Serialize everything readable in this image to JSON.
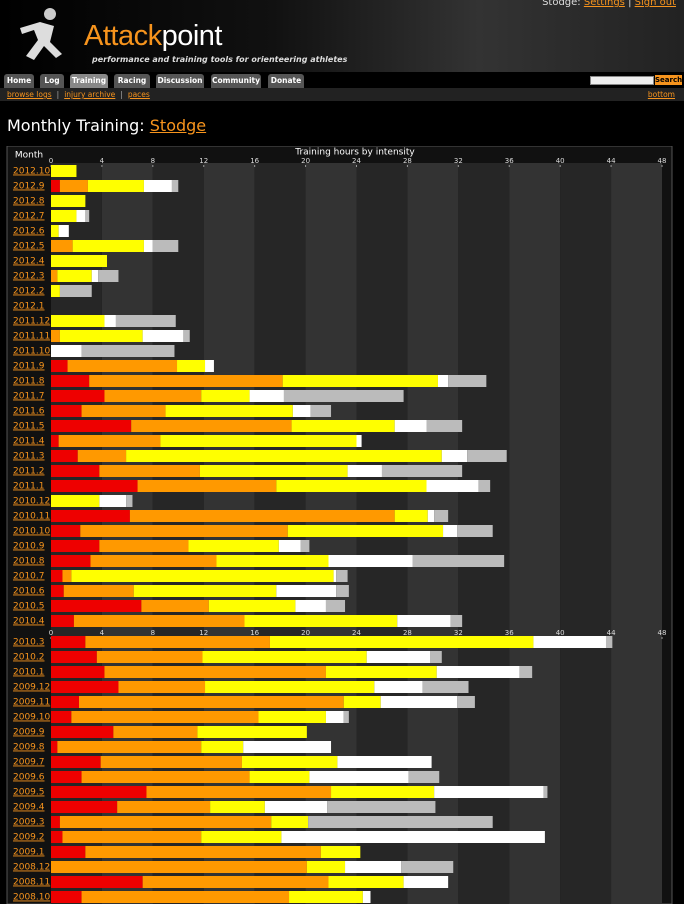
{
  "header": {
    "logo_part1": "Attack",
    "logo_part2": "point",
    "tagline": "performance and training tools for orienteering athletes",
    "user": "Stodge:",
    "settings": "Settings",
    "separator": "|",
    "sign_out": "Sign out",
    "search": "Search"
  },
  "nav": [
    "Home",
    "Log",
    "Training",
    "Racing",
    "Discussion",
    "Community",
    "Donate"
  ],
  "subnav": [
    "browse logs",
    "injury archive",
    "paces"
  ],
  "subnav_right": "bottom",
  "page": {
    "title": "Monthly Training:",
    "user": "Stodge"
  },
  "chart_data": {
    "type": "bar",
    "orientation": "horizontal",
    "stacked": true,
    "title": "Training hours by intensity",
    "category_label": "Month",
    "categories": [
      "2012.10",
      "2012.9",
      "2012.8",
      "2012.7",
      "2012.6",
      "2012.5",
      "2012.4",
      "2012.3",
      "2012.2",
      "2012.1",
      "2011.12",
      "2011.11",
      "2011.10",
      "2011.9",
      "2011.8",
      "2011.7",
      "2011.6",
      "2011.5",
      "2011.4",
      "2011.3",
      "2011.2",
      "2011.1",
      "2010.12",
      "2010.11",
      "2010.10",
      "2010.9",
      "2010.8",
      "2010.7",
      "2010.6",
      "2010.5",
      "2010.4",
      "2010.3",
      "2010.2",
      "2010.1",
      "2009.12",
      "2009.11",
      "2009.10",
      "2009.9",
      "2009.8",
      "2009.7",
      "2009.6",
      "2009.5",
      "2009.4",
      "2009.3",
      "2009.2",
      "2009.1",
      "2008.12",
      "2008.11",
      "2008.10"
    ],
    "series": [
      {
        "color": "#ee0000",
        "values": [
          0,
          0.7,
          0,
          0,
          0,
          0,
          0,
          0,
          0,
          0,
          0,
          0,
          0,
          1.3,
          3.0,
          4.2,
          2.4,
          6.3,
          0.6,
          2.1,
          3.8,
          6.8,
          0,
          6.2,
          2.3,
          3.8,
          3.1,
          0.9,
          1.0,
          7.1,
          1.8,
          2.7,
          3.6,
          4.2,
          5.3,
          2.2,
          1.6,
          4.9,
          0.5,
          3.9,
          2.4,
          7.5,
          5.2,
          0.7,
          0.9,
          2.7,
          0,
          7.2,
          2.4
        ]
      },
      {
        "color": "#ff9900",
        "values": [
          0,
          2.2,
          0,
          0,
          0,
          1.7,
          0,
          0.5,
          0,
          0,
          0,
          0.7,
          0,
          8.6,
          15.2,
          7.6,
          6.6,
          12.6,
          8.0,
          3.8,
          7.9,
          10.9,
          0,
          20.8,
          16.3,
          7.0,
          9.9,
          0.7,
          5.5,
          5.3,
          13.4,
          14.5,
          8.3,
          17.4,
          6.8,
          20.8,
          14.7,
          6.6,
          11.3,
          11.1,
          13.2,
          14.5,
          7.3,
          16.6,
          10.9,
          18.5,
          20.1,
          14.6,
          16.3
        ]
      },
      {
        "color": "#ffff00",
        "values": [
          2.0,
          4.4,
          2.7,
          2.0,
          0.6,
          5.6,
          4.4,
          2.7,
          0.7,
          0,
          4.2,
          6.5,
          0,
          2.2,
          12.2,
          3.8,
          10.0,
          8.1,
          15.4,
          24.8,
          11.6,
          11.8,
          3.8,
          2.6,
          12.2,
          7.1,
          8.8,
          20.6,
          11.2,
          6.8,
          12.0,
          20.7,
          12.9,
          8.7,
          13.3,
          2.9,
          5.3,
          8.6,
          3.3,
          7.5,
          4.7,
          8.1,
          4.3,
          2.9,
          6.3,
          3.1,
          3.0,
          5.9,
          5.8
        ]
      },
      {
        "color": "#ffffff",
        "values": [
          0,
          2.2,
          0,
          0.7,
          0.8,
          0.7,
          0,
          0.5,
          0,
          0,
          0.9,
          3.2,
          2.4,
          0.7,
          0.8,
          2.7,
          1.4,
          2.5,
          0.4,
          2.0,
          2.7,
          4.1,
          2.1,
          0.5,
          1.1,
          1.7,
          6.6,
          0.2,
          4.7,
          2.4,
          4.2,
          5.7,
          5.0,
          6.5,
          3.8,
          6.0,
          1.4,
          0,
          6.9,
          7.4,
          7.8,
          8.6,
          4.9,
          0,
          20.7,
          0,
          4.4,
          3.5,
          0.6
        ]
      },
      {
        "color": "#bbbbbb",
        "values": [
          0,
          0.5,
          0,
          0.3,
          0,
          2.0,
          0,
          1.6,
          2.5,
          0,
          4.7,
          0.5,
          7.3,
          0,
          3.0,
          9.4,
          1.6,
          2.8,
          0,
          3.1,
          6.3,
          0.9,
          0.5,
          1.1,
          2.8,
          0.7,
          7.2,
          0.9,
          1.0,
          1.5,
          0.9,
          0.5,
          0.9,
          1.0,
          3.6,
          1.4,
          0.4,
          0,
          0,
          0,
          2.4,
          0.3,
          8.5,
          14.5,
          0,
          0,
          4.1,
          0,
          0
        ]
      }
    ],
    "xlim": [
      0,
      48
    ],
    "xticks": [
      0,
      4,
      8,
      12,
      16,
      20,
      24,
      28,
      32,
      36,
      40,
      44,
      48
    ],
    "axis_repeat_after": 31
  }
}
